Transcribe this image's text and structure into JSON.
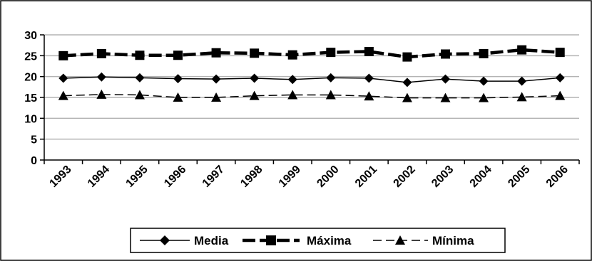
{
  "chart_data": {
    "type": "line",
    "title": "",
    "xlabel": "",
    "ylabel": "",
    "categories": [
      "1993",
      "1994",
      "1995",
      "1996",
      "1997",
      "1998",
      "1999",
      "2000",
      "2001",
      "2002",
      "2003",
      "2004",
      "2005",
      "2006"
    ],
    "ylim": [
      0,
      30
    ],
    "yticks": [
      0,
      5,
      10,
      15,
      20,
      25,
      30
    ],
    "grid": true,
    "legend_position": "bottom",
    "series": [
      {
        "name": "Media",
        "marker": "diamond",
        "line_style": "solid",
        "color": "#000000",
        "values": [
          19.6,
          19.9,
          19.7,
          19.5,
          19.4,
          19.6,
          19.3,
          19.7,
          19.6,
          18.6,
          19.4,
          18.9,
          18.9,
          19.7
        ]
      },
      {
        "name": "Máxima",
        "marker": "square",
        "line_style": "dashed-thick",
        "color": "#000000",
        "values": [
          25.0,
          25.5,
          25.1,
          25.1,
          25.7,
          25.6,
          25.2,
          25.8,
          26.0,
          24.7,
          25.4,
          25.5,
          26.4,
          25.8
        ]
      },
      {
        "name": "Mínima",
        "marker": "triangle",
        "line_style": "dashed",
        "color": "#000000",
        "values": [
          15.4,
          15.7,
          15.6,
          15.0,
          15.0,
          15.4,
          15.6,
          15.6,
          15.3,
          14.9,
          14.9,
          14.9,
          15.1,
          15.4
        ]
      }
    ]
  }
}
